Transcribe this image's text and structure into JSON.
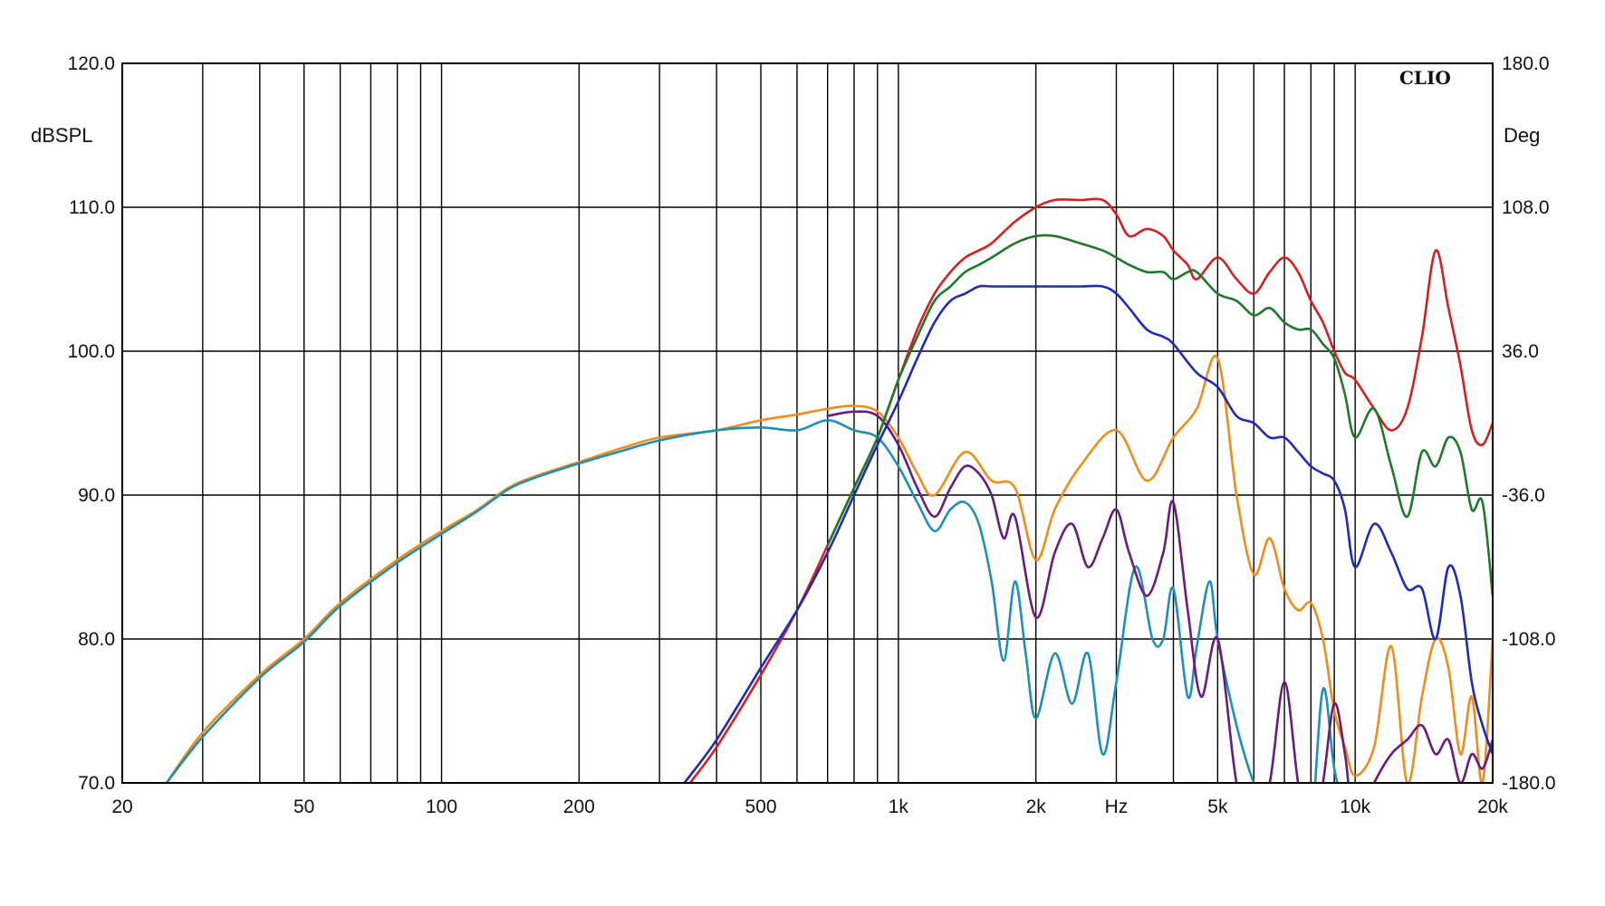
{
  "chart_data": {
    "type": "line",
    "brand": "CLIO",
    "x_scale": "log",
    "xlim": [
      20,
      20000
    ],
    "xticks": [
      {
        "value": 20,
        "label": "20"
      },
      {
        "value": 50,
        "label": "50"
      },
      {
        "value": 100,
        "label": "100"
      },
      {
        "value": 200,
        "label": "200"
      },
      {
        "value": 500,
        "label": "500"
      },
      {
        "value": 1000,
        "label": "1k"
      },
      {
        "value": 2000,
        "label": "2k"
      },
      {
        "value": 5000,
        "label": "5k"
      },
      {
        "value": 10000,
        "label": "10k"
      },
      {
        "value": 20000,
        "label": "20k"
      }
    ],
    "x_unit_label": "Hz",
    "x_unit_at": 3000,
    "y_left": {
      "label": "dBSPL",
      "ylim": [
        70,
        120
      ],
      "ticks": [
        "70.0",
        "80.0",
        "90.0",
        "100.0",
        "110.0",
        "120.0"
      ]
    },
    "y_right": {
      "label": "Deg",
      "ylim": [
        -180,
        180
      ],
      "ticks": [
        "-180.0",
        "-108.0",
        "-36.0",
        "36.0",
        "108.0",
        "180.0"
      ]
    },
    "grid": true,
    "series": [
      {
        "color": "#f08c1c",
        "x": [
          25,
          30,
          40,
          50,
          60,
          80,
          100,
          120,
          140,
          160,
          200,
          250,
          300,
          400,
          500,
          600,
          700,
          800,
          900,
          1000,
          1100,
          1200,
          1400,
          1600,
          1800,
          2000,
          2200,
          2500,
          3000,
          3500,
          4000,
          4500,
          5000,
          5500,
          6000,
          6500,
          7000,
          7500,
          8000,
          8500,
          9000,
          9500,
          10000,
          11000,
          12000,
          13000,
          14000,
          15000,
          16000,
          17000,
          18000,
          19000,
          20000
        ],
        "y": [
          70,
          73.5,
          77.5,
          80,
          82.5,
          85.5,
          87.5,
          89,
          90.5,
          91.3,
          92.3,
          93.3,
          94,
          94.5,
          95.2,
          95.6,
          96,
          96.2,
          95.8,
          94,
          91.5,
          90,
          93,
          91,
          90.5,
          85.5,
          89,
          92,
          94.5,
          91,
          94,
          96,
          99.5,
          90,
          84.5,
          87,
          83.5,
          82,
          82.5,
          80,
          75,
          72.5,
          70.5,
          72.5,
          79.5,
          70,
          76,
          80,
          78,
          72,
          76,
          70,
          80
        ]
      },
      {
        "color": "#1f8fb8",
        "x": [
          25,
          30,
          40,
          50,
          60,
          80,
          100,
          120,
          140,
          160,
          200,
          250,
          300,
          400,
          500,
          600,
          700,
          800,
          900,
          1000,
          1100,
          1200,
          1300,
          1400,
          1500,
          1600,
          1700,
          1800,
          1900,
          2000,
          2200,
          2400,
          2600,
          2800,
          3000,
          3300,
          3600,
          3800,
          4000,
          4300,
          4500,
          4800,
          5000,
          5500,
          6000,
          6500,
          7000,
          7500,
          8000,
          8500,
          9000,
          9500
        ],
        "y": [
          70,
          73.2,
          77.3,
          79.8,
          82.3,
          85.3,
          87.3,
          88.9,
          90.4,
          91.2,
          92.2,
          93.1,
          93.8,
          94.5,
          94.7,
          94.5,
          95.2,
          94.5,
          94,
          92,
          89.5,
          87.5,
          89,
          89.5,
          88,
          84,
          78.5,
          84,
          79,
          74.5,
          79,
          75.5,
          79,
          72,
          77,
          85,
          80,
          80,
          83.5,
          76,
          79.5,
          84,
          80,
          74,
          70,
          68,
          66,
          65,
          66.5,
          76.5,
          71,
          68
        ]
      },
      {
        "color": "#6a1c7a",
        "x": [
          700,
          800,
          900,
          1000,
          1100,
          1200,
          1300,
          1400,
          1500,
          1600,
          1700,
          1800,
          2000,
          2200,
          2400,
          2600,
          2800,
          3000,
          3200,
          3500,
          3800,
          4000,
          4300,
          4600,
          5000,
          5500,
          6000,
          6500,
          7000,
          7500,
          8000,
          8500,
          9000,
          9500,
          10000,
          11000,
          12000,
          13000,
          14000,
          15000,
          16000,
          17000,
          18000,
          19000,
          20000
        ],
        "y": [
          95.5,
          95.8,
          95.5,
          93.5,
          90.5,
          88.5,
          90.5,
          92,
          91.5,
          90,
          87,
          88.5,
          81.5,
          86,
          88,
          85,
          87,
          89,
          86,
          83,
          86,
          89.5,
          82,
          76,
          80,
          70,
          67,
          70,
          77,
          70,
          66,
          70,
          75.5,
          72,
          67,
          70,
          72,
          73,
          74,
          72,
          73,
          70,
          72,
          71,
          73
        ]
      },
      {
        "color": "#d42020",
        "x": [
          350,
          400,
          500,
          600,
          700,
          800,
          900,
          1000,
          1100,
          1200,
          1300,
          1400,
          1500,
          1600,
          1800,
          2000,
          2200,
          2500,
          2800,
          3000,
          3200,
          3500,
          3800,
          4000,
          4300,
          4500,
          5000,
          5500,
          6000,
          6500,
          7000,
          7500,
          8000,
          8500,
          9000,
          9500,
          10000,
          11000,
          12000,
          13000,
          14000,
          15000,
          16000,
          17000,
          18000,
          19000,
          20000
        ],
        "y": [
          70,
          72.5,
          77.5,
          82,
          86.5,
          90.5,
          94,
          98,
          101.5,
          104,
          105.5,
          106.5,
          107,
          107.5,
          109,
          110,
          110.5,
          110.5,
          110.5,
          109.5,
          108,
          108.5,
          108,
          107,
          106,
          105,
          106.5,
          105,
          104,
          105.5,
          106.5,
          105.5,
          103.5,
          102,
          100,
          98.5,
          98,
          96,
          94.5,
          96,
          101,
          107,
          103,
          99,
          94.5,
          93.5,
          95
        ]
      },
      {
        "color": "#1e7a2a",
        "x": [
          700,
          800,
          900,
          1000,
          1100,
          1200,
          1300,
          1400,
          1500,
          1600,
          1800,
          2000,
          2200,
          2500,
          2800,
          3000,
          3200,
          3500,
          3800,
          4000,
          4300,
          4500,
          5000,
          5500,
          6000,
          6500,
          7000,
          7500,
          8000,
          8500,
          9000,
          9500,
          10000,
          11000,
          12000,
          13000,
          14000,
          15000,
          16000,
          17000,
          18000,
          19000,
          20000
        ],
        "y": [
          86.5,
          90.5,
          94,
          98,
          101,
          103.5,
          104.5,
          105.5,
          106,
          106.5,
          107.5,
          108,
          108,
          107.5,
          107,
          106.5,
          106,
          105.5,
          105.5,
          105,
          105.5,
          105.5,
          104,
          103.5,
          102.5,
          103,
          102,
          101.5,
          101.5,
          100.5,
          99.5,
          97,
          94,
          96,
          92,
          88.5,
          93,
          92,
          94,
          93,
          89,
          89.5,
          83
        ]
      },
      {
        "color": "#1f2bb8",
        "x": [
          340,
          400,
          500,
          600,
          700,
          800,
          900,
          1000,
          1100,
          1200,
          1300,
          1400,
          1500,
          1600,
          1800,
          2000,
          2200,
          2500,
          2800,
          3000,
          3200,
          3500,
          3800,
          4000,
          4500,
          5000,
          5500,
          6000,
          6500,
          7000,
          7500,
          8000,
          8500,
          9000,
          9500,
          10000,
          11000,
          12000,
          13000,
          14000,
          15000,
          16000,
          17000,
          18000,
          19000,
          20000
        ],
        "y": [
          70,
          73,
          78,
          82,
          86,
          90,
          93.5,
          96.5,
          99.5,
          102,
          103.5,
          104,
          104.5,
          104.5,
          104.5,
          104.5,
          104.5,
          104.5,
          104.5,
          104,
          103,
          101.5,
          101,
          100.5,
          98.5,
          97.5,
          95.5,
          95,
          94,
          94,
          93,
          92,
          91.5,
          91,
          89,
          85,
          88,
          86,
          83.5,
          83.5,
          80,
          85,
          83,
          77,
          74,
          72
        ]
      }
    ]
  }
}
